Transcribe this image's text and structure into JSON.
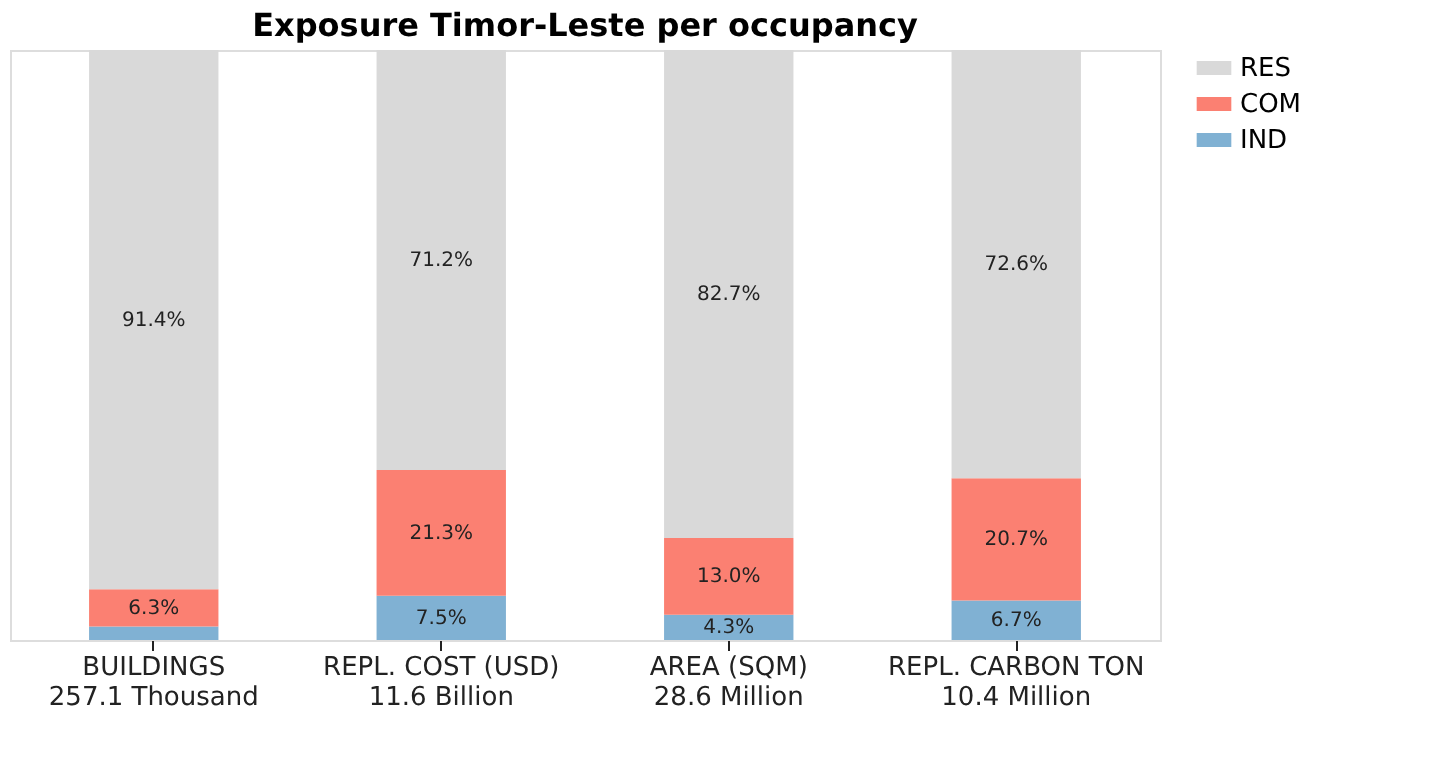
{
  "chart_data": {
    "type": "bar",
    "title": "Exposure Timor-Leste per occupancy",
    "stacked": true,
    "categories": [
      "BUILDINGS\n257.1 Thousand",
      "REPL. COST (USD)\n11.6 Billion",
      "AREA (SQM)\n28.6 Million",
      "REPL. CARBON TON\n10.4 Million"
    ],
    "series": [
      {
        "name": "IND",
        "color": "#80b1d3",
        "values": [
          2.3,
          7.5,
          4.3,
          6.7
        ],
        "value_labels": [
          null,
          "7.5%",
          "4.3%",
          "6.7%"
        ]
      },
      {
        "name": "COM",
        "color": "#fb8072",
        "values": [
          6.3,
          21.3,
          13.0,
          20.7
        ],
        "value_labels": [
          "6.3%",
          "21.3%",
          "13.0%",
          "20.7%"
        ]
      },
      {
        "name": "RES",
        "color": "#d9d9d9",
        "values": [
          91.4,
          71.2,
          82.7,
          72.6
        ],
        "value_labels": [
          "91.4%",
          "71.2%",
          "82.7%",
          "72.6%"
        ]
      }
    ],
    "ylim": [
      0,
      100
    ],
    "tick_labels": "x",
    "legend": "top right",
    "grid": false
  }
}
